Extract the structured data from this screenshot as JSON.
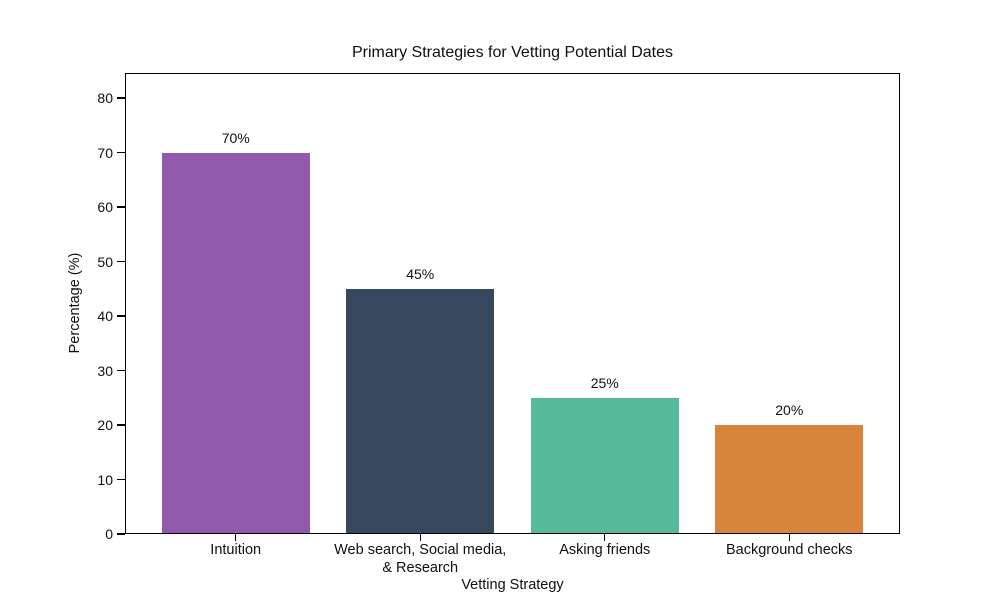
{
  "chart_data": {
    "type": "bar",
    "title": "Primary Strategies for Vetting Potential Dates",
    "xlabel": "Vetting Strategy",
    "ylabel": "Percentage (%)",
    "categories": [
      "Intuition",
      "Web search, Social media,\n& Research",
      "Asking friends",
      "Background checks"
    ],
    "values": [
      70,
      45,
      25,
      20
    ],
    "value_labels": [
      "70%",
      "45%",
      "25%",
      "20%"
    ],
    "bar_colors": [
      "#925AAC",
      "#37485E",
      "#57B99C",
      "#D8843D"
    ],
    "yticks": [
      0,
      10,
      20,
      30,
      40,
      50,
      60,
      70,
      80
    ],
    "ylim": [
      0,
      84.6
    ],
    "xlim": [
      -0.6,
      3.6
    ],
    "bar_width": 0.8,
    "grid": false,
    "legend": null,
    "background_color": "#ffffff",
    "text_color": "#101010",
    "axis_color": "#000000"
  }
}
